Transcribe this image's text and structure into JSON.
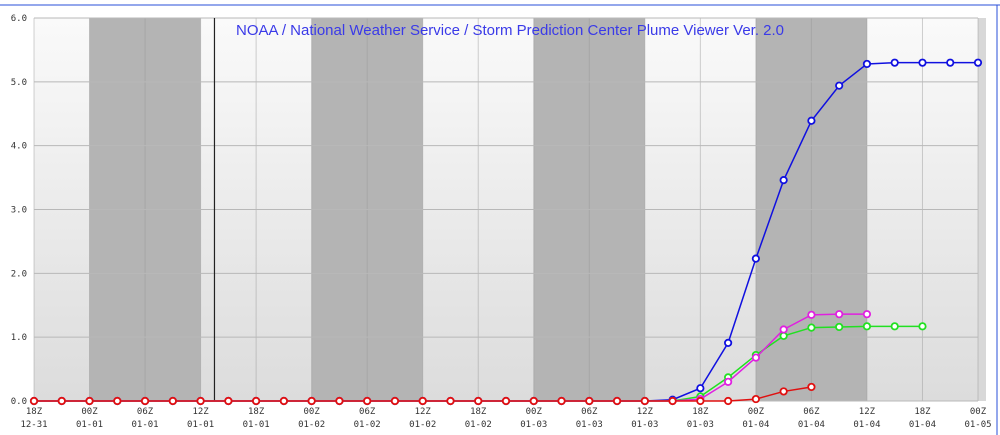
{
  "chart_data": {
    "type": "line",
    "title": "NOAA / National Weather Service / Storm Prediction Center Plume Viewer Ver. 2.0",
    "categories": [
      "18Z 12-31",
      null,
      "00Z 01-01",
      null,
      "06Z 01-01",
      null,
      "12Z 01-01",
      null,
      "18Z 01-01",
      null,
      "00Z 01-02",
      null,
      "06Z 01-02",
      null,
      "12Z 01-02",
      null,
      "18Z 01-02",
      null,
      "00Z 01-03",
      null,
      "06Z 01-03",
      null,
      "12Z 01-03",
      null,
      "18Z 01-03",
      null,
      "00Z 01-04",
      null,
      "06Z 01-04",
      null,
      "12Z 01-04",
      null,
      "18Z 01-04",
      null,
      "00Z 01-05"
    ],
    "series": [
      {
        "color": "#1010e0",
        "values": [
          0,
          0,
          0,
          0,
          0,
          0,
          0,
          0,
          0,
          0,
          0,
          0,
          0,
          0,
          0,
          0,
          0,
          0,
          0,
          0,
          0,
          0,
          0,
          0.02,
          0.2,
          0.91,
          2.23,
          3.46,
          4.39,
          4.94,
          5.28,
          5.3,
          5.3,
          5.3,
          5.3
        ]
      },
      {
        "color": "#22e022",
        "values": [
          0,
          0,
          0,
          0,
          0,
          0,
          0,
          0,
          0,
          0,
          0,
          0,
          0,
          0,
          0,
          0,
          0,
          0,
          0,
          0,
          0,
          0,
          0,
          0,
          0.07,
          0.37,
          0.72,
          1.02,
          1.15,
          1.16,
          1.17,
          1.17,
          1.17,
          null,
          null
        ]
      },
      {
        "color": "#e020e0",
        "values": [
          0,
          0,
          0,
          0,
          0,
          0,
          0,
          0,
          0,
          0,
          0,
          0,
          0,
          0,
          0,
          0,
          0,
          0,
          0,
          0,
          0,
          0,
          0,
          0,
          0.03,
          0.3,
          0.68,
          1.12,
          1.35,
          1.36,
          1.36,
          null,
          null,
          null,
          null
        ]
      },
      {
        "color": "#e01010",
        "values": [
          0,
          0,
          0,
          0,
          0,
          0,
          0,
          0,
          0,
          0,
          0,
          0,
          0,
          0,
          0,
          0,
          0,
          0,
          0,
          0,
          0,
          0,
          0,
          0,
          0,
          0,
          0.03,
          0.15,
          0.22,
          null,
          null,
          null,
          null,
          null,
          null
        ]
      }
    ],
    "ylim": [
      0,
      6
    ],
    "yticks": [
      {
        "value": 0,
        "label": "0.0"
      },
      {
        "value": 1,
        "label": "1.0"
      },
      {
        "value": 2,
        "label": "2.0"
      },
      {
        "value": 3,
        "label": "3.0"
      },
      {
        "value": 4,
        "label": "4.0"
      },
      {
        "value": 5,
        "label": "5.0"
      },
      {
        "value": 6,
        "label": "6.0"
      }
    ],
    "grid": true
  }
}
